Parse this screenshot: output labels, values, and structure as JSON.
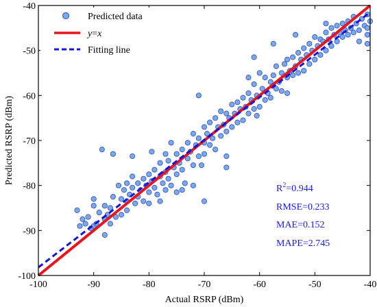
{
  "chart_data": {
    "type": "scatter",
    "xlabel": "Actual RSRP (dBm)",
    "ylabel": "Predicted RSRP (dBm)",
    "xlim": [
      -100,
      -40
    ],
    "ylim": [
      -100,
      -40
    ],
    "xticks": [
      -100,
      -90,
      -80,
      -70,
      -60,
      -50,
      -40
    ],
    "yticks": [
      -100,
      -90,
      -80,
      -70,
      -60,
      -50,
      -40
    ],
    "grid": false,
    "legend_position": "top-left",
    "legend": {
      "scatter_label": "Predicted data",
      "identity_label_y": "y",
      "identity_label_eq": "=",
      "identity_label_x": "x",
      "fit_label": "Fitting line"
    },
    "metrics": {
      "r2_prefix": "R",
      "r2_sup": "2",
      "r2_value": "=0.944",
      "rmse": "RMSE=0.233",
      "mae": "MAE=0.152",
      "mape": "MAPE=2.745"
    },
    "identity_line": {
      "x": [
        -100,
        -40
      ],
      "y": [
        -100,
        -40
      ]
    },
    "fit_line": {
      "x": [
        -100,
        -40
      ],
      "y": [
        -98.2,
        -41.5
      ]
    },
    "colors": {
      "marker_fill": "#7fa8e8",
      "marker_stroke": "#3c64c8",
      "identity": "#e8141e",
      "fit": "#1414dc",
      "metrics": "#1a1ae6"
    },
    "series": [
      {
        "name": "Predicted data",
        "points": [
          [
            -93,
            -85.5
          ],
          [
            -92.5,
            -89
          ],
          [
            -92,
            -87.5
          ],
          [
            -91.5,
            -88.5
          ],
          [
            -91,
            -87
          ],
          [
            -90.5,
            -89.5
          ],
          [
            -90,
            -83
          ],
          [
            -90,
            -84.5
          ],
          [
            -90,
            -89
          ],
          [
            -89.5,
            -88.5
          ],
          [
            -89,
            -86
          ],
          [
            -88.5,
            -72
          ],
          [
            -88,
            -84.5
          ],
          [
            -88,
            -87.5
          ],
          [
            -88,
            -91
          ],
          [
            -87.5,
            -86.5
          ],
          [
            -87,
            -88.5
          ],
          [
            -87,
            -85
          ],
          [
            -86.5,
            -73
          ],
          [
            -86.5,
            -82.5
          ],
          [
            -86,
            -87
          ],
          [
            -85.5,
            -80
          ],
          [
            -85,
            -83
          ],
          [
            -85,
            -86.5
          ],
          [
            -84.5,
            -81
          ],
          [
            -84,
            -79.5
          ],
          [
            -84,
            -83.5
          ],
          [
            -84,
            -85.5
          ],
          [
            -83.5,
            -82
          ],
          [
            -83,
            -80.5
          ],
          [
            -83,
            -78
          ],
          [
            -82.5,
            -84
          ],
          [
            -82,
            -82.5
          ],
          [
            -82,
            -79.5
          ],
          [
            -81.5,
            -81
          ],
          [
            -81,
            -83.5
          ],
          [
            -81,
            -78.5
          ],
          [
            -80.5,
            -80
          ],
          [
            -80,
            -81.5
          ],
          [
            -80,
            -77.5
          ],
          [
            -80,
            -84
          ],
          [
            -79.5,
            -72.5
          ],
          [
            -79.5,
            -79
          ],
          [
            -79,
            -80.5
          ],
          [
            -79,
            -76.5
          ],
          [
            -78.5,
            -82
          ],
          [
            -78,
            -78
          ],
          [
            -78,
            -75
          ],
          [
            -78,
            -83.5
          ],
          [
            -77.5,
            -79.5
          ],
          [
            -77,
            -77
          ],
          [
            -77,
            -81
          ],
          [
            -76.5,
            -74.5
          ],
          [
            -76.5,
            -78.5
          ],
          [
            -76,
            -80
          ],
          [
            -76,
            -70.5
          ],
          [
            -75.5,
            -76
          ],
          [
            -75,
            -77.5
          ],
          [
            -75,
            -73
          ],
          [
            -75,
            -81.5
          ],
          [
            -74.5,
            -75
          ],
          [
            -74,
            -76.5
          ],
          [
            -74,
            -72
          ],
          [
            -73.5,
            -79.5
          ],
          [
            -73,
            -74
          ],
          [
            -73,
            -70.5
          ],
          [
            -72.5,
            -72.5
          ],
          [
            -72,
            -75.5
          ],
          [
            -72,
            -68.5
          ],
          [
            -71.5,
            -71
          ],
          [
            -71,
            -73.5
          ],
          [
            -71,
            -69.5
          ],
          [
            -70.5,
            -75.5
          ],
          [
            -70,
            -70.5
          ],
          [
            -70,
            -67
          ],
          [
            -70,
            -73
          ],
          [
            -69.5,
            -68.5
          ],
          [
            -69,
            -71
          ],
          [
            -69,
            -66
          ],
          [
            -68.5,
            -69.5
          ],
          [
            -68,
            -72
          ],
          [
            -68,
            -65
          ],
          [
            -67.5,
            -67
          ],
          [
            -67,
            -69
          ],
          [
            -67,
            -63.5
          ],
          [
            -66.5,
            -66.5
          ],
          [
            -66,
            -68
          ],
          [
            -66,
            -64
          ],
          [
            -66,
            -76
          ],
          [
            -65.5,
            -65
          ],
          [
            -65,
            -67
          ],
          [
            -65,
            -62
          ],
          [
            -64.5,
            -64
          ],
          [
            -64,
            -66
          ],
          [
            -64,
            -61.5
          ],
          [
            -63.5,
            -63
          ],
          [
            -63,
            -65.5
          ],
          [
            -63,
            -60.5
          ],
          [
            -62.5,
            -62.5
          ],
          [
            -62,
            -64
          ],
          [
            -62,
            -59.5
          ],
          [
            -61.5,
            -61
          ],
          [
            -61,
            -63
          ],
          [
            -61,
            -57.5
          ],
          [
            -60.5,
            -60
          ],
          [
            -60,
            -62.5
          ],
          [
            -60,
            -55
          ],
          [
            -59.5,
            -58.5
          ],
          [
            -59,
            -61
          ],
          [
            -59,
            -56
          ],
          [
            -58.5,
            -59.5
          ],
          [
            -58,
            -57
          ],
          [
            -58,
            -60.5
          ],
          [
            -57.5,
            -55.5
          ],
          [
            -57,
            -58.5
          ],
          [
            -57,
            -53.5
          ],
          [
            -56.5,
            -57
          ],
          [
            -56,
            -55
          ],
          [
            -56,
            -59
          ],
          [
            -55.5,
            -53
          ],
          [
            -55,
            -56
          ],
          [
            -55,
            -52
          ],
          [
            -54.5,
            -54.5
          ],
          [
            -54,
            -55.5
          ],
          [
            -54,
            -51.5
          ],
          [
            -53.5,
            -53.5
          ],
          [
            -53,
            -55
          ],
          [
            -53,
            -50.5
          ],
          [
            -52.5,
            -52
          ],
          [
            -52,
            -54.5
          ],
          [
            -52,
            -49.5
          ],
          [
            -51.5,
            -51
          ],
          [
            -51,
            -53
          ],
          [
            -51,
            -48.5
          ],
          [
            -50.5,
            -50
          ],
          [
            -50,
            -52
          ],
          [
            -50,
            -47
          ],
          [
            -49.5,
            -49
          ],
          [
            -49,
            -51
          ],
          [
            -49,
            -47.5
          ],
          [
            -48.5,
            -48
          ],
          [
            -48,
            -50
          ],
          [
            -48,
            -46
          ],
          [
            -47.5,
            -47.5
          ],
          [
            -47,
            -49
          ],
          [
            -47,
            -45
          ],
          [
            -46.5,
            -46.5
          ],
          [
            -46,
            -48
          ],
          [
            -46,
            -44.5
          ],
          [
            -45.5,
            -46
          ],
          [
            -45,
            -47
          ],
          [
            -45,
            -44
          ],
          [
            -44.5,
            -45.5
          ],
          [
            -44,
            -46.5
          ],
          [
            -44,
            -43.5
          ],
          [
            -43.5,
            -45
          ],
          [
            -43,
            -46
          ],
          [
            -43,
            -42.5
          ],
          [
            -42.5,
            -44
          ],
          [
            -42,
            -45.5
          ],
          [
            -42,
            -48
          ],
          [
            -41.5,
            -43
          ],
          [
            -41,
            -44.5
          ],
          [
            -40.5,
            -42
          ],
          [
            -40.5,
            -45
          ],
          [
            -40.5,
            -46.5
          ],
          [
            -40.5,
            -48.5
          ],
          [
            -40,
            -43.5
          ],
          [
            -57.5,
            -48.5
          ],
          [
            -61,
            -51.5
          ],
          [
            -71,
            -60
          ],
          [
            -70,
            -83.5
          ],
          [
            -62,
            -56
          ],
          [
            -53.5,
            -46.5
          ],
          [
            -48,
            -44
          ],
          [
            -66,
            -73.5
          ],
          [
            -83,
            -73.5
          ],
          [
            -77,
            -73
          ],
          [
            -55,
            -59.5
          ],
          [
            -60.5,
            -64.5
          ],
          [
            -74,
            -81
          ],
          [
            -72,
            -80
          ]
        ]
      }
    ]
  }
}
